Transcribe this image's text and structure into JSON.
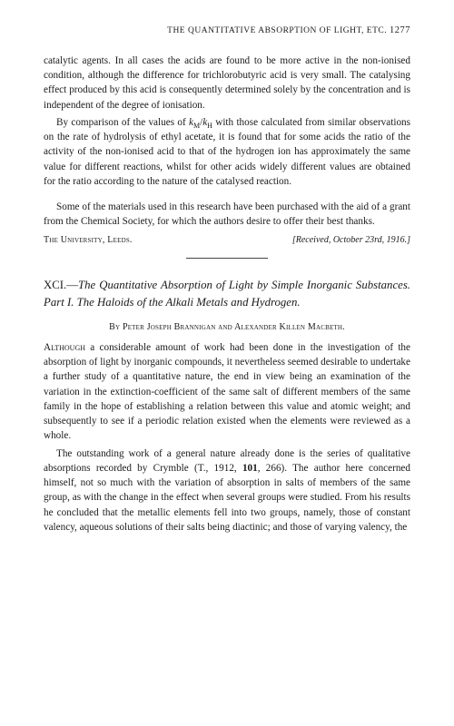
{
  "running_header": "THE QUANTITATIVE ABSORPTION OF LIGHT, ETC.",
  "page_number": "1277",
  "para1a": "catalytic agents. In all cases the acids are found to be more active in the non-ionised condition, although the difference for trichlorobutyric acid is very small. The catalysing effect produced by this acid is consequently determined solely by the concentration and is independent of the degree of ionisation.",
  "para2_pre": "By comparison of the values of ",
  "para2_ratio_a": "k",
  "para2_ratio_sub_a": "M",
  "para2_ratio_slash": "/",
  "para2_ratio_b": "k",
  "para2_ratio_sub_b": "H",
  "para2_post": " with those calculated from similar observations on the rate of hydrolysis of ethyl acetate, it is found that for some acids the ratio of the activity of the non-ionised acid to that of the hydrogen ion has approximately the same value for different reactions, whilst for other acids widely different values are obtained for the ratio according to the nature of the catalysed reaction.",
  "ack": "Some of the materials used in this research have been purchased with the aid of a grant from the Chemical Society, for which the authors desire to offer their best thanks.",
  "footer_left": "The University, Leeds.",
  "footer_right": "[Received, October 23rd, 1916.]",
  "title_roman": "XCI.—",
  "title_italic": "The Quantitative Absorption of Light by Simple Inorganic Substances. Part I. The Haloids of the Alkali Metals and Hydrogen.",
  "authors": "By Peter Joseph Brannigan and Alexander Killen Macbeth.",
  "body1_first": "Although",
  "body1_rest": " a considerable amount of work had been done in the investigation of the absorption of light by inorganic compounds, it nevertheless seemed desirable to undertake a further study of a quantitative nature, the end in view being an examination of the variation in the extinction-coefficient of the same salt of different members of the same family in the hope of establishing a relation between this value and atomic weight; and subsequently to see if a periodic relation existed when the elements were reviewed as a whole.",
  "body2_a": "The outstanding work of a general nature already done is the series of qualitative absorptions recorded by Crymble (T., 1912, ",
  "body2_bold": "101",
  "body2_b": ", 266). The author here concerned himself, not so much with the variation of absorption in salts of members of the same group, as with the change in the effect when several groups were studied. From his results he concluded that the metallic elements fell into two groups, namely, those of constant valency, aqueous solutions of their salts being diactinic; and those of varying valency, the"
}
